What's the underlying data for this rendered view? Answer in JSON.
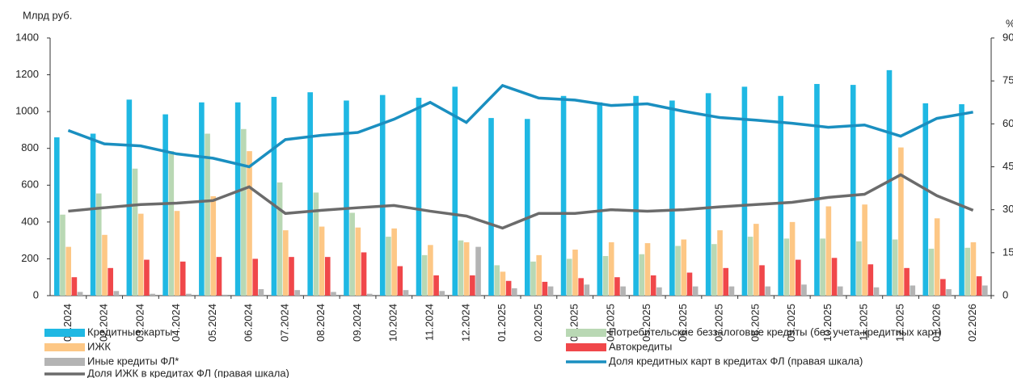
{
  "chart_data": {
    "type": "bar",
    "y_label": "Млрд руб.",
    "y2_label": "%",
    "categories": [
      "01.2024",
      "02.2024",
      "03.2024",
      "04.2024",
      "05.2024",
      "06.2024",
      "07.2024",
      "08.2024",
      "09.2024",
      "10.2024",
      "11.2024",
      "12.2024",
      "01.2025",
      "02.2025",
      "03.2025",
      "04.2025",
      "05.2025",
      "06.2025",
      "07.2025",
      "08.2025",
      "09.2025",
      "10.2025",
      "11.2025",
      "12.2025",
      "01.2026",
      "02.2026"
    ],
    "ylim": [
      0,
      1400
    ],
    "yticks": [
      0,
      200,
      400,
      600,
      800,
      1000,
      1200,
      1400
    ],
    "y2lim": [
      0,
      90
    ],
    "y2ticks": [
      0,
      15,
      30,
      45,
      60,
      75,
      90
    ],
    "series": [
      {
        "name": "Кредитные карты",
        "type": "bar",
        "color": "#1fb8e3",
        "values": [
          860,
          880,
          1065,
          985,
          1050,
          1050,
          1080,
          1105,
          1060,
          1090,
          1075,
          1135,
          965,
          960,
          1085,
          1050,
          1085,
          1060,
          1100,
          1135,
          1085,
          1150,
          1145,
          1225,
          1045,
          1040
        ]
      },
      {
        "name": "Потребительские беззалоговые кредиты (без учета кредитных карт)",
        "type": "bar",
        "color": "#b9d8b4",
        "values": [
          440,
          555,
          690,
          785,
          880,
          905,
          615,
          560,
          450,
          320,
          220,
          300,
          165,
          185,
          200,
          215,
          225,
          270,
          280,
          320,
          310,
          310,
          295,
          305,
          255,
          260
        ]
      },
      {
        "name": "ИЖК",
        "type": "bar",
        "color": "#fdc785",
        "values": [
          265,
          330,
          445,
          460,
          540,
          785,
          355,
          375,
          370,
          365,
          275,
          290,
          130,
          220,
          250,
          290,
          285,
          305,
          355,
          390,
          400,
          485,
          495,
          805,
          420,
          290
        ]
      },
      {
        "name": "Автокредиты",
        "type": "bar",
        "color": "#f0474a",
        "values": [
          100,
          150,
          195,
          185,
          210,
          200,
          210,
          210,
          235,
          160,
          110,
          110,
          80,
          75,
          95,
          100,
          110,
          125,
          150,
          165,
          195,
          205,
          170,
          150,
          90,
          105
        ]
      },
      {
        "name": "Иные кредиты ФЛ*",
        "type": "bar",
        "color": "#b4b4b4",
        "values": [
          20,
          25,
          10,
          10,
          5,
          35,
          30,
          20,
          10,
          30,
          25,
          265,
          40,
          50,
          60,
          50,
          45,
          50,
          50,
          50,
          60,
          50,
          45,
          55,
          35,
          55
        ]
      },
      {
        "name": "Доля кредитных карт в кредитах ФЛ (правая шкала)",
        "type": "line",
        "axis": "y2",
        "color": "#1a8fc0",
        "values": [
          57.7,
          53,
          52.3,
          49.5,
          48,
          45,
          54.5,
          56,
          57,
          61.6,
          67.5,
          60.5,
          73.4,
          69,
          68.3,
          66.4,
          67,
          64.4,
          62.2,
          61.3,
          60.2,
          58.8,
          59.6,
          55.7,
          61.9,
          64.1
        ]
      },
      {
        "name": "Доля ИЖК в кредитах ФЛ (правая шкала)",
        "type": "line",
        "axis": "y2",
        "color": "#6b6b6b",
        "values": [
          29.5,
          30.7,
          31.8,
          32.3,
          33.2,
          38,
          28.7,
          29.8,
          30.7,
          31.5,
          29.5,
          27.8,
          23.6,
          28.7,
          28.7,
          30,
          29.5,
          30,
          31,
          31.8,
          32.6,
          34.3,
          35.4,
          42.2,
          34.9,
          29.8
        ]
      }
    ]
  }
}
